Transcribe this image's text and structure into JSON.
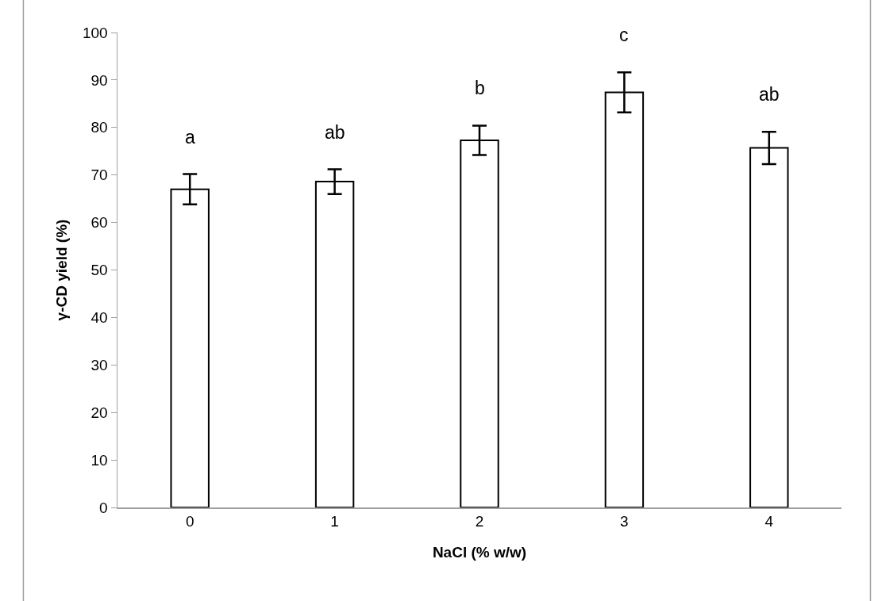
{
  "chart_data": {
    "type": "bar",
    "xlabel": "NaCl (% w/w)",
    "ylabel": "γ-CD yield (%)",
    "categories": [
      "0",
      "1",
      "2",
      "3",
      "4"
    ],
    "values": [
      67.0,
      68.6,
      77.3,
      87.4,
      75.7
    ],
    "errors": [
      3.2,
      2.6,
      3.1,
      4.2,
      3.4
    ],
    "color": "#ffffff",
    "ylim": [
      0,
      100
    ],
    "yticks": [
      0,
      10,
      20,
      30,
      40,
      50,
      60,
      70,
      80,
      90,
      100
    ],
    "grid": false,
    "legend": false,
    "annotations": [
      "a",
      "ab",
      "b",
      "c",
      "ab"
    ]
  }
}
